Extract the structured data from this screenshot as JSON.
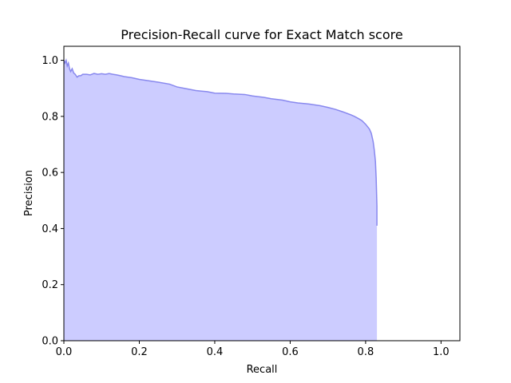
{
  "chart_data": {
    "type": "area",
    "title": "Precision-Recall curve for Exact Match score",
    "xlabel": "Recall",
    "ylabel": "Precision",
    "xlim": [
      0.0,
      1.05
    ],
    "ylim": [
      0.0,
      1.05
    ],
    "xticks": [
      "0.0",
      "0.2",
      "0.4",
      "0.6",
      "0.8",
      "1.0"
    ],
    "yticks": [
      "0.0",
      "0.2",
      "0.4",
      "0.6",
      "0.8",
      "1.0"
    ],
    "grid": false,
    "legend": "none",
    "fill_color": "#ccccff",
    "line_color": "#8888ee",
    "series": [
      {
        "x": [
          0.0,
          0.003,
          0.006,
          0.009,
          0.012,
          0.015,
          0.018,
          0.022,
          0.026,
          0.03,
          0.035,
          0.04,
          0.045,
          0.05,
          0.06,
          0.07,
          0.08,
          0.09,
          0.1,
          0.11,
          0.12,
          0.13,
          0.14,
          0.15,
          0.16,
          0.18,
          0.2,
          0.22,
          0.25,
          0.28,
          0.3,
          0.32,
          0.35,
          0.38,
          0.4,
          0.43,
          0.45,
          0.48,
          0.5,
          0.53,
          0.55,
          0.58,
          0.6,
          0.62,
          0.65,
          0.68,
          0.7,
          0.72,
          0.74,
          0.76,
          0.77,
          0.78,
          0.79,
          0.8,
          0.81,
          0.815,
          0.82,
          0.823,
          0.826,
          0.828,
          0.83,
          0.83
        ],
        "y": [
          1.0,
          0.99,
          1.0,
          0.98,
          0.99,
          0.97,
          0.96,
          0.97,
          0.955,
          0.95,
          0.94,
          0.945,
          0.945,
          0.95,
          0.95,
          0.948,
          0.953,
          0.95,
          0.952,
          0.95,
          0.953,
          0.95,
          0.948,
          0.945,
          0.942,
          0.938,
          0.932,
          0.928,
          0.922,
          0.915,
          0.905,
          0.9,
          0.892,
          0.888,
          0.883,
          0.882,
          0.88,
          0.878,
          0.873,
          0.868,
          0.863,
          0.858,
          0.852,
          0.848,
          0.844,
          0.838,
          0.832,
          0.825,
          0.816,
          0.806,
          0.8,
          0.793,
          0.785,
          0.772,
          0.755,
          0.74,
          0.71,
          0.68,
          0.64,
          0.58,
          0.48,
          0.41
        ]
      }
    ]
  }
}
